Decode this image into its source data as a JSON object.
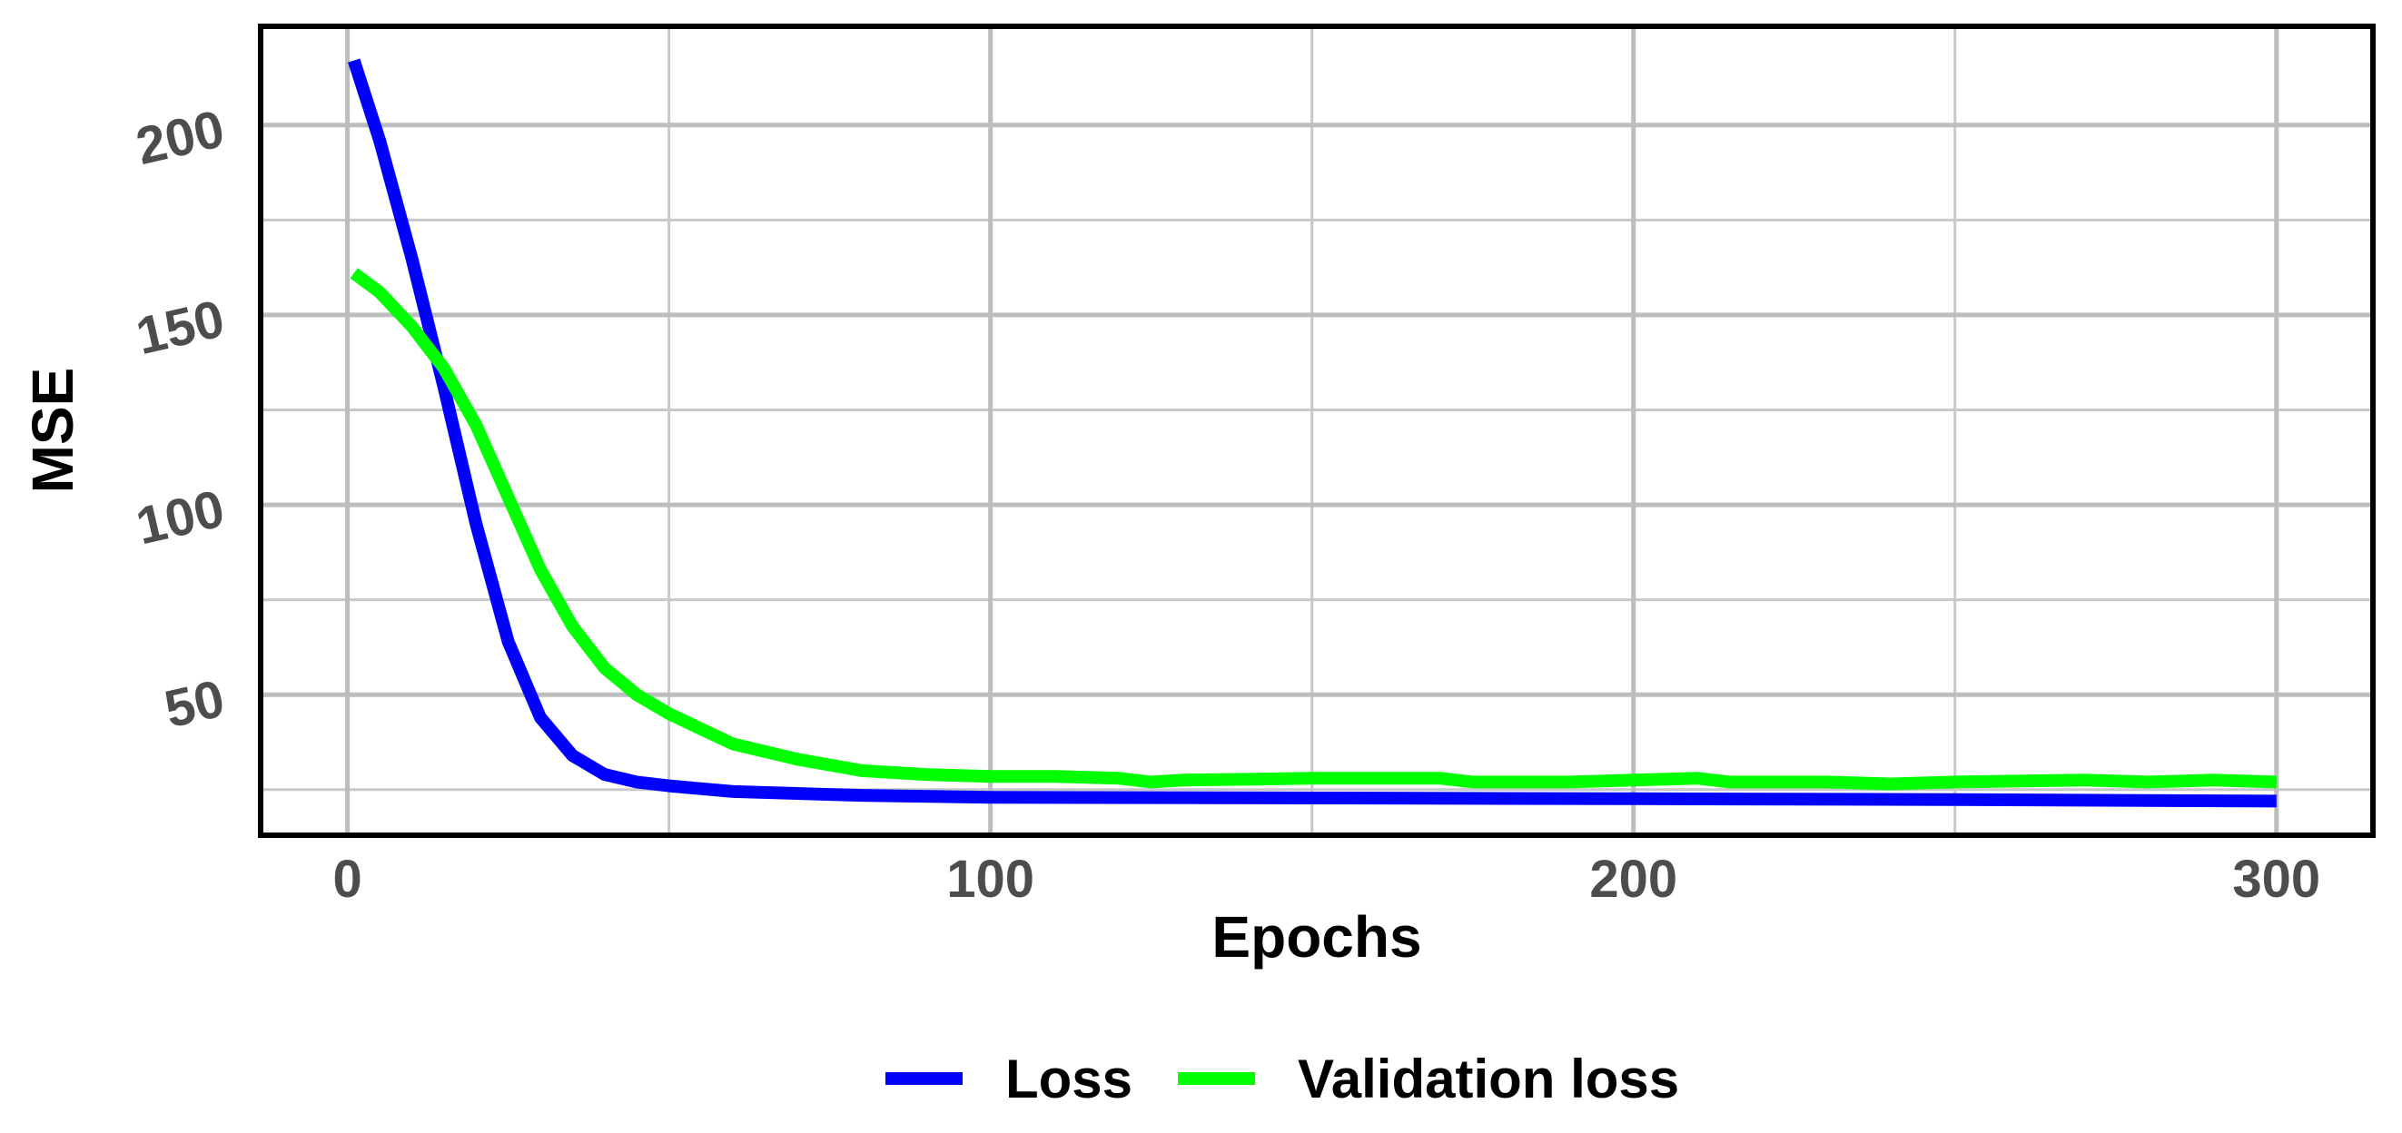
{
  "chart_data": {
    "type": "line",
    "xlabel": "Epochs",
    "ylabel": "MSE",
    "xlim": [
      -13.5,
      315
    ],
    "ylim": [
      13,
      226
    ],
    "x_ticks": [
      0,
      100,
      200,
      300
    ],
    "x_tick_labels": [
      "0",
      "100",
      "200",
      "300"
    ],
    "y_ticks": [
      50,
      100,
      150,
      200
    ],
    "y_tick_labels": [
      "50",
      "100",
      "150",
      "200"
    ],
    "x_minor_grid": [
      50,
      150,
      250
    ],
    "y_minor_grid": [
      25,
      75,
      125,
      175
    ],
    "grid": true,
    "legend_position": "bottom",
    "series": [
      {
        "name": "Loss",
        "color": "#0000ff",
        "x": [
          1,
          5,
          10,
          15,
          20,
          25,
          30,
          35,
          40,
          45,
          50,
          60,
          70,
          80,
          100,
          150,
          200,
          250,
          300
        ],
        "y": [
          217,
          196,
          165,
          131,
          95,
          64,
          44,
          34,
          29,
          27,
          26,
          24.5,
          24,
          23.5,
          23,
          22.8,
          22.6,
          22.4,
          22
        ]
      },
      {
        "name": "Validation loss",
        "color": "#00ff00",
        "x": [
          1,
          5,
          10,
          15,
          20,
          25,
          30,
          35,
          40,
          45,
          50,
          55,
          60,
          70,
          80,
          90,
          100,
          110,
          120,
          125,
          130,
          150,
          160,
          170,
          175,
          190,
          200,
          210,
          215,
          230,
          240,
          250,
          270,
          280,
          290,
          300
        ],
        "y": [
          161,
          156,
          147,
          136,
          121,
          102,
          83,
          68,
          57,
          50,
          45,
          41,
          37,
          33,
          30,
          29,
          28.5,
          28.5,
          28,
          27,
          27.5,
          28,
          28,
          28,
          27,
          27,
          27.5,
          28,
          27,
          27,
          26.5,
          27,
          27.5,
          27,
          27.5,
          27
        ]
      }
    ]
  }
}
